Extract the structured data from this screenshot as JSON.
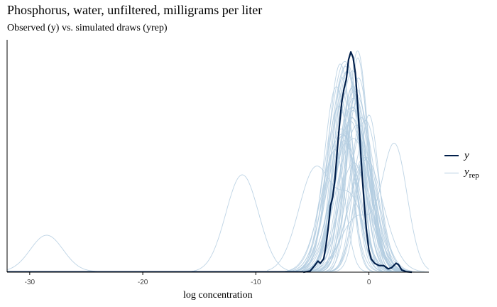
{
  "chart_data": {
    "type": "line",
    "title": "Phosphorus, water, unfiltered, milligrams per liter",
    "subtitle": "Observed (y) vs. simulated draws (yrep)",
    "xlabel": "log concentration",
    "ylabel": "",
    "xlim": [
      -32,
      5.3
    ],
    "ylim": [
      0,
      1.05
    ],
    "x_ticks": [
      -30,
      -20,
      -10,
      0
    ],
    "x_tick_labels": [
      "-30",
      "-20",
      "-10",
      "0"
    ],
    "grid": false,
    "legend_position": "right",
    "series": [
      {
        "name": "y",
        "color": "#011f4b",
        "points": [
          [
            -5.8,
            0
          ],
          [
            -5.2,
            0.005
          ],
          [
            -4.8,
            0.03
          ],
          [
            -4.5,
            0.05
          ],
          [
            -4.3,
            0.04
          ],
          [
            -4.0,
            0.06
          ],
          [
            -3.8,
            0.12
          ],
          [
            -3.6,
            0.2
          ],
          [
            -3.4,
            0.3
          ],
          [
            -3.2,
            0.34
          ],
          [
            -3.0,
            0.42
          ],
          [
            -2.8,
            0.55
          ],
          [
            -2.6,
            0.67
          ],
          [
            -2.4,
            0.77
          ],
          [
            -2.2,
            0.83
          ],
          [
            -2.0,
            0.87
          ],
          [
            -1.8,
            0.96
          ],
          [
            -1.6,
            0.995
          ],
          [
            -1.4,
            0.97
          ],
          [
            -1.2,
            0.9
          ],
          [
            -1.0,
            0.76
          ],
          [
            -0.8,
            0.6
          ],
          [
            -0.6,
            0.44
          ],
          [
            -0.4,
            0.3
          ],
          [
            -0.2,
            0.18
          ],
          [
            0.0,
            0.1
          ],
          [
            0.2,
            0.06
          ],
          [
            0.5,
            0.04
          ],
          [
            0.9,
            0.03
          ],
          [
            1.3,
            0.03
          ],
          [
            1.7,
            0.015
          ],
          [
            2.0,
            0.02
          ],
          [
            2.4,
            0.04
          ],
          [
            2.6,
            0.035
          ],
          [
            2.9,
            0.01
          ],
          [
            3.3,
            0.002
          ],
          [
            3.8,
            0
          ]
        ]
      },
      {
        "name": "y_rep",
        "color": "#b3cde0",
        "draws": 50
      }
    ]
  },
  "legend": {
    "y_label": "y",
    "yrep_main": "y",
    "yrep_sub": "rep"
  }
}
